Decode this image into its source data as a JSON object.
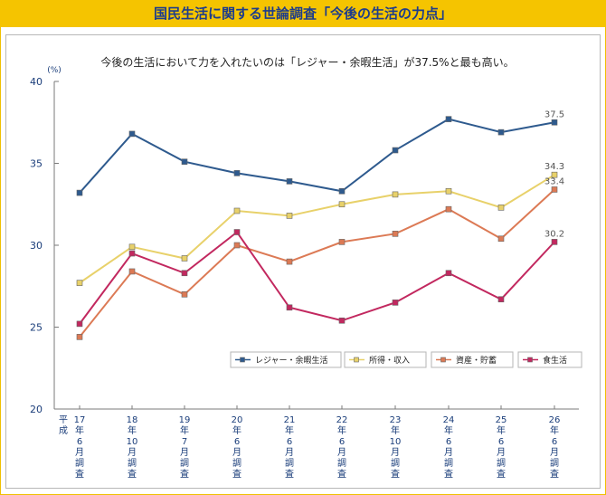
{
  "page_title": "国民生活に関する世論調査「今後の生活の力点」",
  "chart_data": {
    "type": "line",
    "title": "今後の生活において力を入れたいのは「レジャー・余暇生活」が37.5%と最も高い。",
    "ylabel": "(%)",
    "ylim": [
      20,
      40
    ],
    "yticks": [
      20,
      25,
      30,
      35,
      40
    ],
    "era_label": [
      "平",
      "成"
    ],
    "categories": [
      [
        "17",
        "年",
        "6",
        "月",
        "調",
        "査"
      ],
      [
        "18",
        "年",
        "10",
        "月",
        "調",
        "査"
      ],
      [
        "19",
        "年",
        "7",
        "月",
        "調",
        "査"
      ],
      [
        "20",
        "年",
        "6",
        "月",
        "調",
        "査"
      ],
      [
        "21",
        "年",
        "6",
        "月",
        "調",
        "査"
      ],
      [
        "22",
        "年",
        "6",
        "月",
        "調",
        "査"
      ],
      [
        "23",
        "年",
        "10",
        "月",
        "調",
        "査"
      ],
      [
        "24",
        "年",
        "6",
        "月",
        "調",
        "査"
      ],
      [
        "25",
        "年",
        "6",
        "月",
        "調",
        "査"
      ],
      [
        "26",
        "年",
        "6",
        "月",
        "調",
        "査"
      ]
    ],
    "series": [
      {
        "name": "レジャー・余暇生活",
        "color": "#2e5a8e",
        "marker": "#2e5a8e",
        "values": [
          33.2,
          36.8,
          35.1,
          34.4,
          33.9,
          33.3,
          35.8,
          37.7,
          36.9,
          37.5
        ],
        "last_label": "37.5"
      },
      {
        "name": "所得・収入",
        "color": "#e8d16a",
        "marker": "#e8d16a",
        "values": [
          27.7,
          29.9,
          29.2,
          32.1,
          31.8,
          32.5,
          33.1,
          33.3,
          32.3,
          34.3
        ],
        "last_label": "34.3"
      },
      {
        "name": "資産・貯蓄",
        "color": "#dc7a55",
        "marker": "#dc7a55",
        "values": [
          24.4,
          28.4,
          27.0,
          30.0,
          29.0,
          30.2,
          30.7,
          32.2,
          30.4,
          33.4
        ],
        "last_label": "33.4"
      },
      {
        "name": "食生活",
        "color": "#c2285f",
        "marker": "#c2285f",
        "values": [
          25.2,
          29.5,
          28.3,
          30.8,
          26.2,
          25.4,
          26.5,
          28.3,
          26.7,
          30.2
        ],
        "last_label": "30.2"
      }
    ],
    "grid": false,
    "legend_position": "bottom-right"
  }
}
